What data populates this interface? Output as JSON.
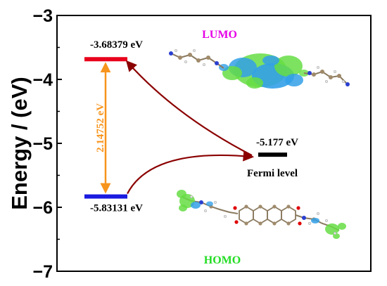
{
  "figure": {
    "ylabel": "Energy / (eV)",
    "y_ticks": [
      "−3",
      "−4",
      "−5",
      "−6",
      "−7"
    ],
    "y_min": -7,
    "y_max": -3
  },
  "levels": {
    "lumo": {
      "value": -3.68379,
      "label": "-3.68379 eV",
      "color": "#e8001c"
    },
    "homo": {
      "value": -5.83131,
      "label": "-5.83131 eV",
      "color": "#1a1ae0"
    },
    "fermi": {
      "value": -5.177,
      "label": "-5.177 eV",
      "color": "#000000",
      "name": "Fermi level"
    }
  },
  "gap": {
    "label": "2.14752 eV",
    "color": "#f7941d"
  },
  "orbitals": {
    "lumo_title": "LUMO",
    "lumo_color": "#e600e6",
    "homo_title": "HOMO",
    "homo_color": "#22dd22"
  },
  "colors": {
    "arrow": "#8b0000",
    "isosurface_green": "#66dd44",
    "isosurface_blue": "#33a0e8"
  }
}
